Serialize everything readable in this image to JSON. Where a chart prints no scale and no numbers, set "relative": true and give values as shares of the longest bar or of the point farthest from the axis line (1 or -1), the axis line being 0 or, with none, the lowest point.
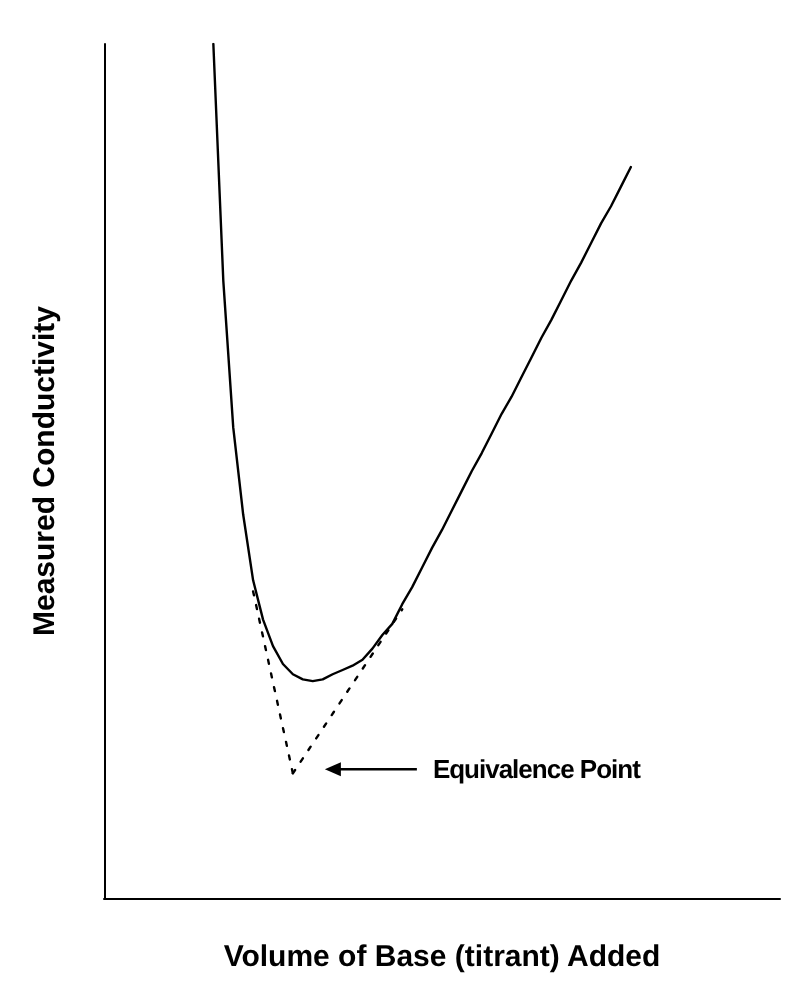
{
  "chart_data": {
    "type": "line",
    "relative": true,
    "xlabel": "Volume of Base (titrant) Added",
    "ylabel": "Measured Conductivity",
    "categories": [
      null,
      null,
      null,
      null,
      null,
      null,
      null,
      null,
      null,
      null,
      null,
      null,
      null,
      null,
      null,
      null,
      null,
      null,
      null,
      null,
      null,
      null,
      null,
      null,
      null,
      null,
      null,
      null,
      null,
      null,
      null,
      null,
      null,
      null,
      null,
      null,
      null,
      null,
      null,
      null,
      null,
      null,
      null,
      null,
      null,
      null,
      null,
      null,
      null,
      null,
      null,
      null,
      null,
      null,
      null,
      null,
      null,
      null,
      null,
      null,
      null,
      null,
      null,
      null,
      null,
      null,
      null,
      null,
      null
    ],
    "series": [
      {
        "color": "#000000",
        "line_style": "solid",
        "values": [
          null,
          null,
          null,
          null,
          null,
          null,
          null,
          null,
          null,
          null,
          null,
          1.0,
          0.723,
          0.551,
          0.449,
          0.372,
          0.326,
          0.295,
          0.274,
          0.262,
          0.256,
          0.254,
          0.256,
          0.262,
          0.267,
          0.272,
          0.279,
          0.292,
          0.308,
          0.321,
          0.344,
          0.364,
          0.387,
          0.41,
          0.431,
          0.454,
          0.477,
          0.5,
          0.521,
          0.544,
          0.567,
          0.587,
          0.61,
          0.633,
          0.656,
          0.677,
          0.7,
          0.723,
          0.744,
          0.767,
          0.79,
          0.81,
          0.833,
          0.856,
          null,
          null,
          null,
          null,
          null,
          null,
          null,
          null,
          null,
          null,
          null,
          null,
          null,
          null,
          null
        ]
      },
      {
        "color": "#000000",
        "line_style": "dotted",
        "values": [
          null,
          null,
          null,
          null,
          null,
          null,
          null,
          null,
          null,
          null,
          null,
          null,
          null,
          null,
          null,
          0.359,
          null,
          null,
          null,
          0.146,
          null,
          null,
          null,
          null,
          null,
          null,
          null,
          null,
          null,
          null,
          null,
          null,
          null,
          null,
          null,
          null,
          null,
          null,
          null,
          null,
          null,
          null,
          null,
          null,
          null,
          null,
          null,
          null,
          null,
          null,
          null,
          null,
          null,
          null,
          null,
          null,
          null,
          null,
          null,
          null,
          null,
          null,
          null,
          null,
          null,
          null,
          null,
          null,
          null
        ]
      },
      {
        "color": "#000000",
        "line_style": "dotted",
        "values": [
          null,
          null,
          null,
          null,
          null,
          null,
          null,
          null,
          null,
          null,
          null,
          null,
          null,
          null,
          null,
          null,
          null,
          null,
          null,
          0.146,
          null,
          null,
          null,
          null,
          null,
          null,
          null,
          null,
          null,
          null,
          0.338,
          null,
          null,
          null,
          null,
          null,
          null,
          null,
          null,
          null,
          null,
          null,
          null,
          null,
          null,
          null,
          null,
          null,
          null,
          null,
          null,
          null,
          null,
          null,
          null,
          null,
          null,
          null,
          null,
          null,
          null,
          null,
          null,
          null,
          null,
          null,
          null,
          null,
          null
        ]
      }
    ],
    "annotations": [
      "Equivalence Point"
    ],
    "marker": "none",
    "grid": false
  }
}
